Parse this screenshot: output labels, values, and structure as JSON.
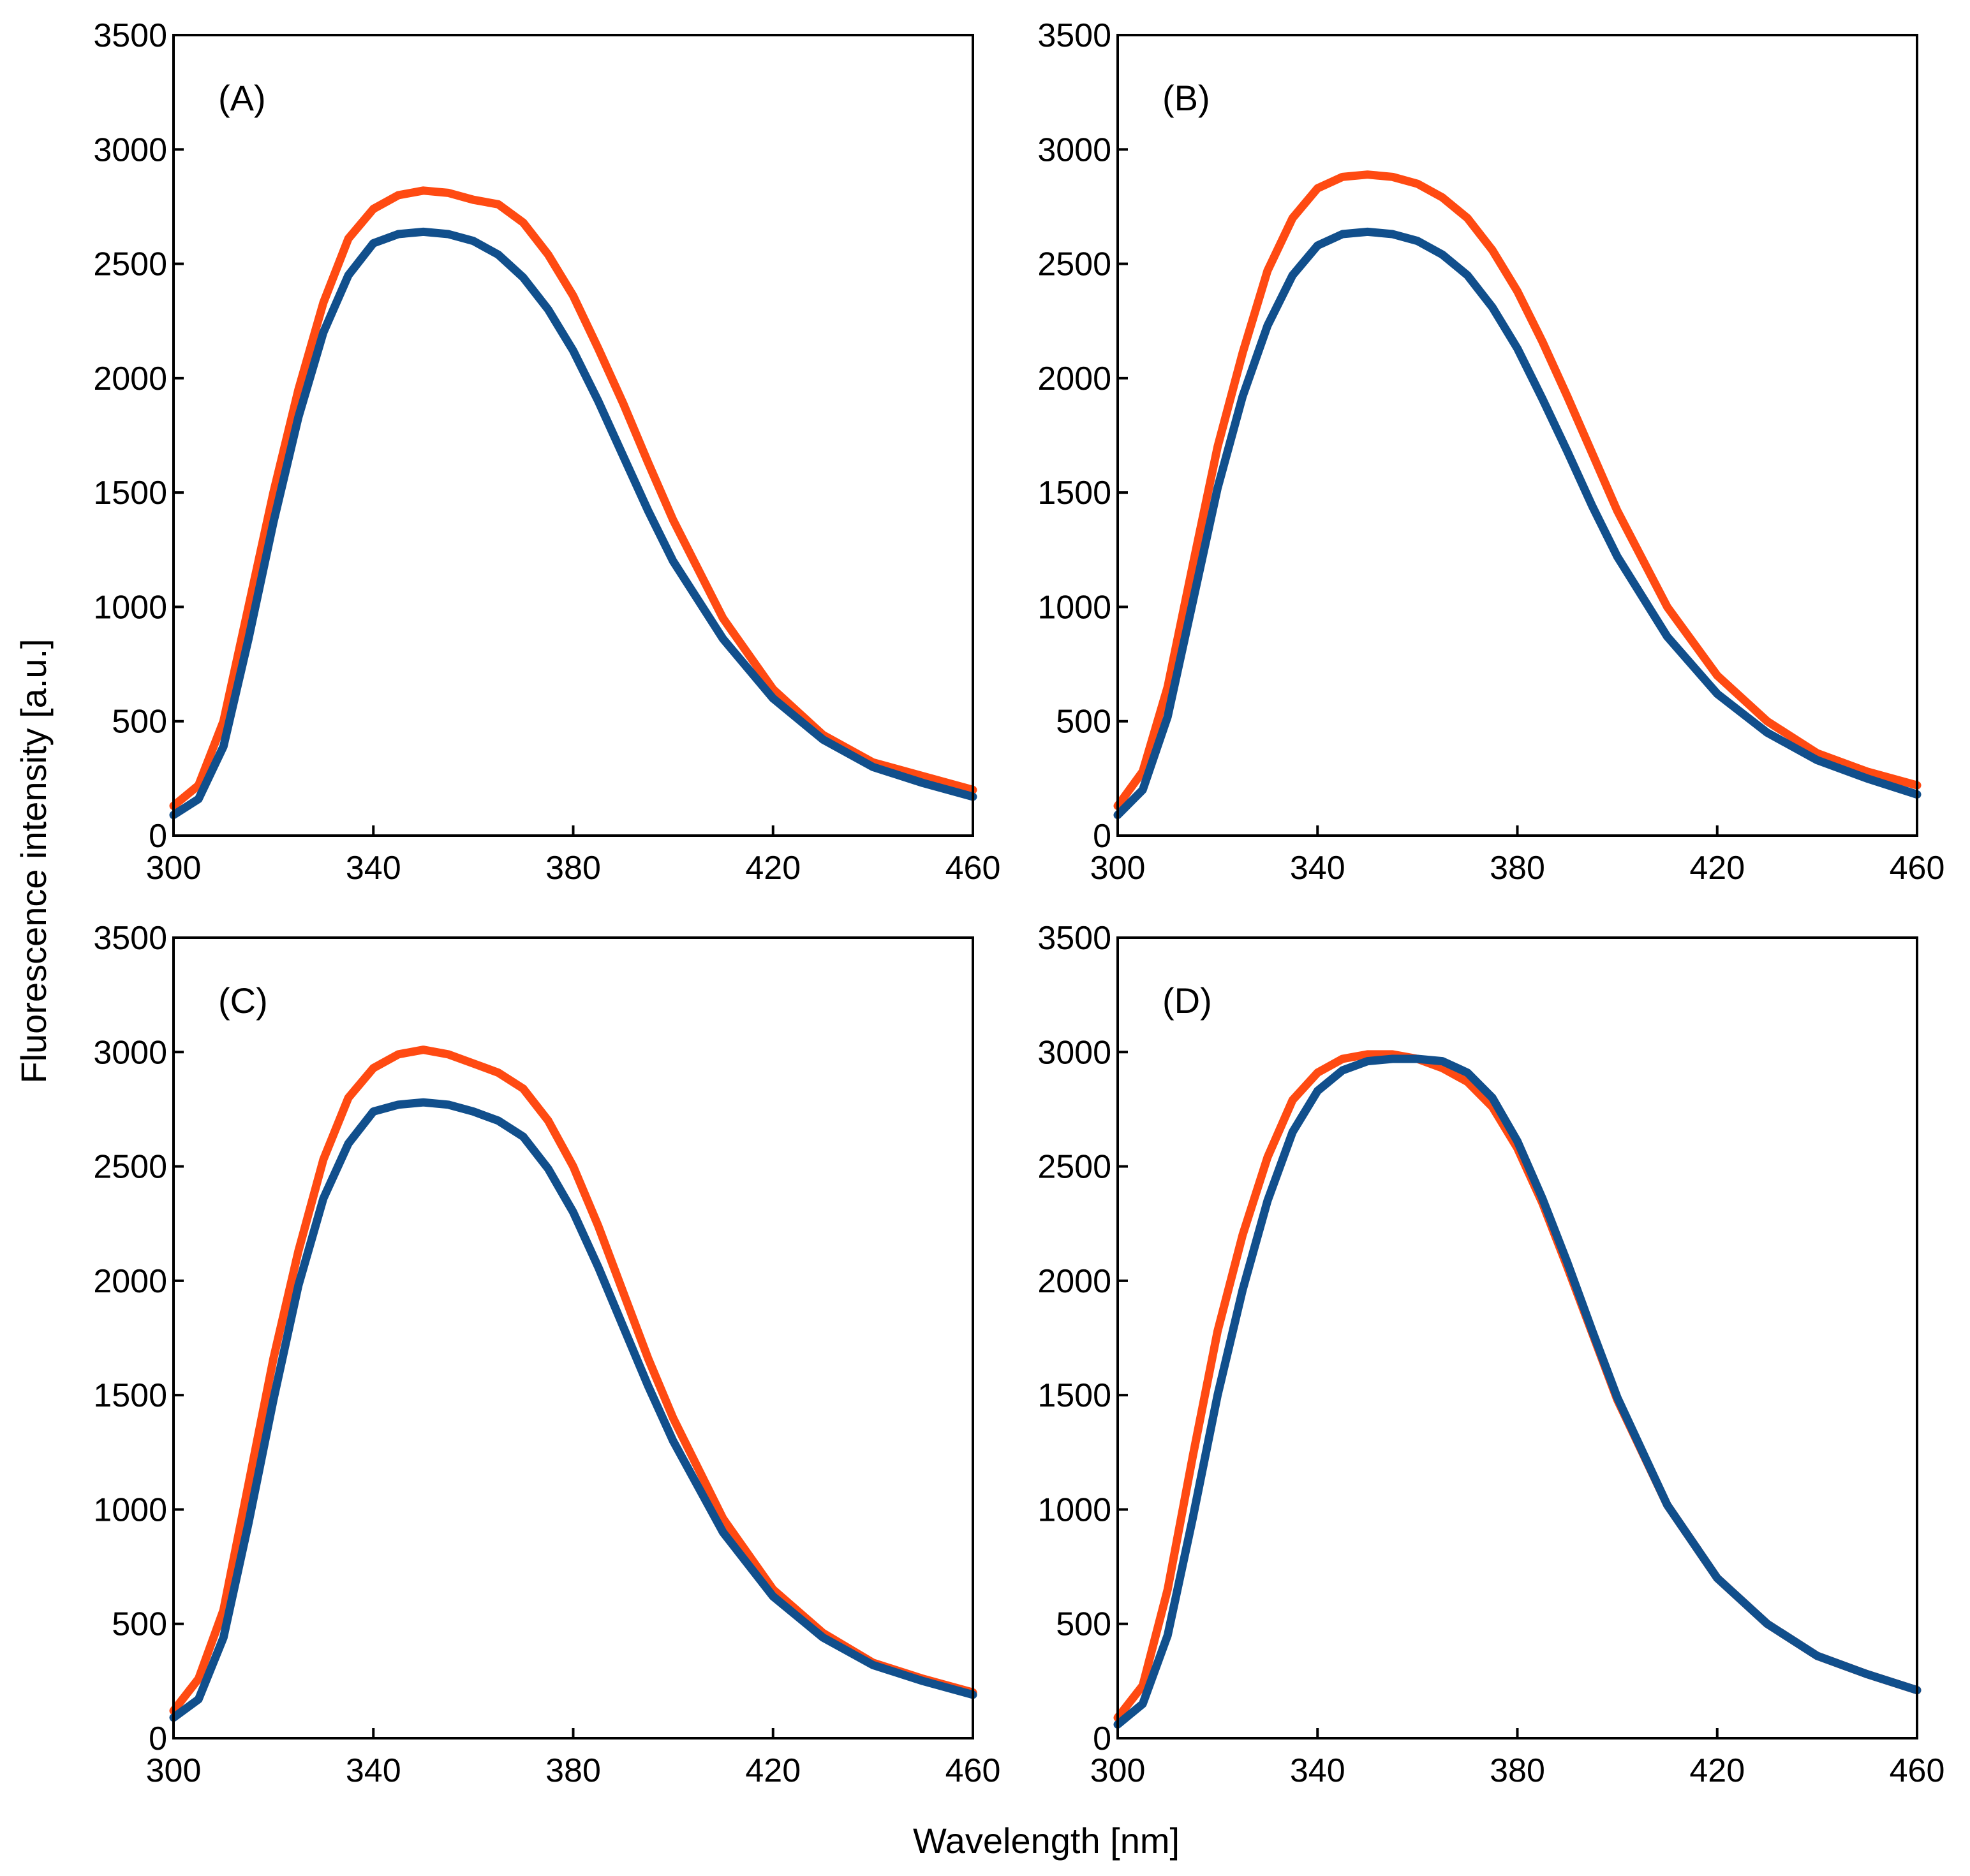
{
  "figure": {
    "xlabel": "Wavelength [nm]",
    "ylabel": "Fluorescence intensity [a.u.]"
  },
  "colors": {
    "series_orange": "#ff4a12",
    "series_blue": "#114f8c"
  },
  "chart_data": [
    {
      "type": "line",
      "panel_label": "(A)",
      "xlim": [
        300,
        460
      ],
      "ylim": [
        0,
        3500
      ],
      "xticks": [
        300,
        340,
        380,
        420,
        460
      ],
      "yticks": [
        0,
        500,
        1000,
        1500,
        2000,
        2500,
        3000,
        3500
      ],
      "x": [
        300,
        305,
        310,
        315,
        320,
        325,
        330,
        335,
        340,
        345,
        350,
        355,
        360,
        365,
        370,
        375,
        380,
        385,
        390,
        395,
        400,
        410,
        420,
        430,
        440,
        450,
        460
      ],
      "series": [
        {
          "name": "orange",
          "color_key": "series_orange",
          "values": [
            130,
            220,
            500,
            1000,
            1500,
            1950,
            2330,
            2610,
            2740,
            2800,
            2820,
            2810,
            2780,
            2760,
            2680,
            2540,
            2360,
            2130,
            1890,
            1630,
            1380,
            950,
            640,
            440,
            320,
            260,
            200
          ]
        },
        {
          "name": "blue",
          "color_key": "series_blue",
          "values": [
            90,
            160,
            390,
            860,
            1370,
            1830,
            2200,
            2450,
            2590,
            2630,
            2640,
            2630,
            2600,
            2540,
            2440,
            2300,
            2120,
            1900,
            1660,
            1420,
            1200,
            860,
            600,
            420,
            300,
            230,
            170
          ]
        }
      ]
    },
    {
      "type": "line",
      "panel_label": "(B)",
      "xlim": [
        300,
        460
      ],
      "ylim": [
        0,
        3500
      ],
      "xticks": [
        300,
        340,
        380,
        420,
        460
      ],
      "yticks": [
        0,
        500,
        1000,
        1500,
        2000,
        2500,
        3000,
        3500
      ],
      "x": [
        300,
        305,
        310,
        315,
        320,
        325,
        330,
        335,
        340,
        345,
        350,
        355,
        360,
        365,
        370,
        375,
        380,
        385,
        390,
        395,
        400,
        410,
        420,
        430,
        440,
        450,
        460
      ],
      "series": [
        {
          "name": "orange",
          "color_key": "series_orange",
          "values": [
            130,
            280,
            650,
            1180,
            1700,
            2110,
            2470,
            2700,
            2830,
            2880,
            2890,
            2880,
            2850,
            2790,
            2700,
            2560,
            2380,
            2160,
            1920,
            1670,
            1420,
            1000,
            700,
            500,
            360,
            280,
            220
          ]
        },
        {
          "name": "blue",
          "color_key": "series_blue",
          "values": [
            90,
            200,
            520,
            1020,
            1520,
            1920,
            2230,
            2450,
            2580,
            2630,
            2640,
            2630,
            2600,
            2540,
            2450,
            2310,
            2130,
            1910,
            1680,
            1440,
            1220,
            870,
            620,
            450,
            330,
            250,
            180
          ]
        }
      ]
    },
    {
      "type": "line",
      "panel_label": "(C)",
      "xlim": [
        300,
        460
      ],
      "ylim": [
        0,
        3500
      ],
      "xticks": [
        300,
        340,
        380,
        420,
        460
      ],
      "yticks": [
        0,
        500,
        1000,
        1500,
        2000,
        2500,
        3000,
        3500
      ],
      "x": [
        300,
        305,
        310,
        315,
        320,
        325,
        330,
        335,
        340,
        345,
        350,
        355,
        360,
        365,
        370,
        375,
        380,
        385,
        390,
        395,
        400,
        410,
        420,
        430,
        440,
        450,
        460
      ],
      "series": [
        {
          "name": "orange",
          "color_key": "series_orange",
          "values": [
            120,
            260,
            560,
            1110,
            1660,
            2130,
            2530,
            2800,
            2930,
            2990,
            3010,
            2990,
            2950,
            2910,
            2840,
            2700,
            2500,
            2240,
            1950,
            1660,
            1400,
            960,
            650,
            460,
            330,
            260,
            200
          ]
        },
        {
          "name": "blue",
          "color_key": "series_blue",
          "values": [
            90,
            170,
            440,
            940,
            1480,
            1980,
            2360,
            2600,
            2740,
            2770,
            2780,
            2770,
            2740,
            2700,
            2630,
            2490,
            2300,
            2060,
            1800,
            1540,
            1300,
            900,
            620,
            440,
            320,
            250,
            190
          ]
        }
      ]
    },
    {
      "type": "line",
      "panel_label": "(D)",
      "xlim": [
        300,
        460
      ],
      "ylim": [
        0,
        3500
      ],
      "xticks": [
        300,
        340,
        380,
        420,
        460
      ],
      "yticks": [
        0,
        500,
        1000,
        1500,
        2000,
        2500,
        3000,
        3500
      ],
      "x": [
        300,
        305,
        310,
        315,
        320,
        325,
        330,
        335,
        340,
        345,
        350,
        355,
        360,
        365,
        370,
        375,
        380,
        385,
        390,
        395,
        400,
        410,
        420,
        430,
        440,
        450,
        460
      ],
      "series": [
        {
          "name": "orange",
          "color_key": "series_orange",
          "values": [
            90,
            230,
            650,
            1230,
            1780,
            2200,
            2540,
            2790,
            2910,
            2970,
            2990,
            2990,
            2970,
            2930,
            2870,
            2760,
            2580,
            2340,
            2060,
            1770,
            1480,
            1020,
            700,
            500,
            360,
            280,
            210
          ]
        },
        {
          "name": "blue",
          "color_key": "series_blue",
          "values": [
            60,
            150,
            450,
            960,
            1500,
            1960,
            2350,
            2650,
            2830,
            2920,
            2960,
            2970,
            2970,
            2960,
            2910,
            2800,
            2610,
            2360,
            2080,
            1780,
            1490,
            1020,
            700,
            500,
            360,
            280,
            210
          ]
        }
      ]
    }
  ]
}
